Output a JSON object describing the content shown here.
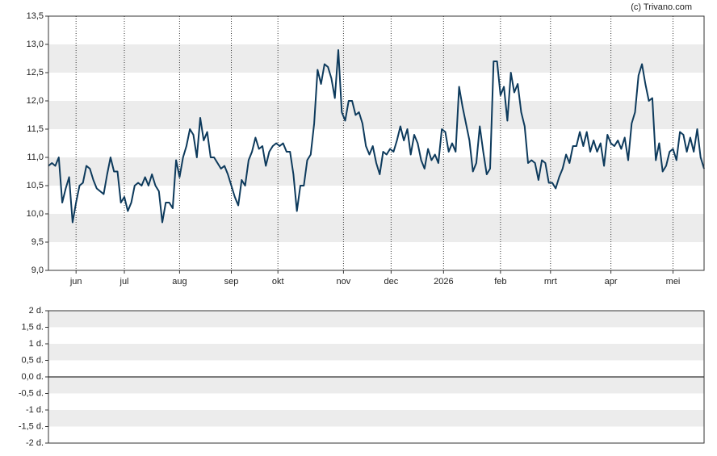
{
  "chart_data": [
    {
      "type": "line",
      "credit": "(c) Trivano.com",
      "series": [
        {
          "color": "#0d3a5c",
          "values": [
            10.85,
            10.9,
            10.85,
            11.0,
            10.2,
            10.45,
            10.65,
            9.85,
            10.2,
            10.5,
            10.55,
            10.85,
            10.8,
            10.6,
            10.45,
            10.4,
            10.35,
            10.7,
            11.0,
            10.75,
            10.75,
            10.2,
            10.3,
            10.05,
            10.2,
            10.5,
            10.55,
            10.5,
            10.65,
            10.5,
            10.7,
            10.5,
            10.4,
            9.85,
            10.2,
            10.2,
            10.1,
            10.95,
            10.65,
            11.0,
            11.2,
            11.5,
            11.4,
            11.0,
            11.7,
            11.3,
            11.45,
            11.0,
            11.0,
            10.9,
            10.8,
            10.85,
            10.7,
            10.5,
            10.3,
            10.15,
            10.6,
            10.5,
            10.95,
            11.1,
            11.35,
            11.15,
            11.2,
            10.85,
            11.1,
            11.2,
            11.25,
            11.2,
            11.25,
            11.1,
            11.1,
            10.7,
            10.05,
            10.5,
            10.5,
            10.95,
            11.05,
            11.6,
            12.55,
            12.3,
            12.65,
            12.6,
            12.4,
            12.05,
            12.9,
            11.8,
            11.65,
            12.0,
            12.0,
            11.75,
            11.8,
            11.6,
            11.2,
            11.05,
            11.2,
            10.9,
            10.7,
            11.1,
            11.05,
            11.15,
            11.1,
            11.3,
            11.55,
            11.3,
            11.5,
            11.05,
            11.4,
            11.25,
            10.95,
            10.8,
            11.15,
            10.95,
            11.05,
            10.9,
            11.5,
            11.45,
            11.1,
            11.25,
            11.1,
            12.25,
            11.9,
            11.6,
            11.3,
            10.75,
            10.9,
            11.55,
            11.1,
            10.7,
            10.8,
            12.7,
            12.7,
            12.1,
            12.25,
            11.65,
            12.5,
            12.15,
            12.3,
            11.8,
            11.55,
            10.9,
            10.95,
            10.9,
            10.6,
            10.95,
            10.9,
            10.55,
            10.55,
            10.45,
            10.65,
            10.8,
            11.05,
            10.9,
            11.2,
            11.2,
            11.45,
            11.2,
            11.45,
            11.1,
            11.3,
            11.1,
            11.25,
            10.85,
            11.4,
            11.25,
            11.2,
            11.3,
            11.15,
            11.35,
            10.95,
            11.6,
            11.8,
            12.45,
            12.65,
            12.3,
            12.0,
            12.05,
            10.95,
            11.25,
            10.75,
            10.85,
            11.1,
            11.15,
            10.95,
            11.45,
            11.4,
            11.1,
            11.35,
            11.1,
            11.5,
            11.0,
            10.8
          ]
        }
      ],
      "xlim": [
        0,
        190
      ],
      "xticks": [
        {
          "value": 8,
          "label": "jun"
        },
        {
          "value": 22,
          "label": "jul"
        },
        {
          "value": 38,
          "label": "aug"
        },
        {
          "value": 53,
          "label": "sep"
        },
        {
          "value": 66.5,
          "label": "okt"
        },
        {
          "value": 85.5,
          "label": "nov"
        },
        {
          "value": 99.3,
          "label": "dec"
        },
        {
          "value": 114.5,
          "label": "2026"
        },
        {
          "value": 131,
          "label": "feb"
        },
        {
          "value": 145.5,
          "label": "mrt"
        },
        {
          "value": 163,
          "label": "apr"
        },
        {
          "value": 181,
          "label": "mei"
        }
      ],
      "ylim": [
        9.0,
        13.5
      ],
      "yticks": [
        {
          "value": 9.0,
          "label": "9,0"
        },
        {
          "value": 9.5,
          "label": "9,5"
        },
        {
          "value": 10.0,
          "label": "10,0"
        },
        {
          "value": 10.5,
          "label": "10,5"
        },
        {
          "value": 11.0,
          "label": "11,0"
        },
        {
          "value": 11.5,
          "label": "11,5"
        },
        {
          "value": 12.0,
          "label": "12,0"
        },
        {
          "value": 12.5,
          "label": "12,5"
        },
        {
          "value": 13.0,
          "label": "13,0"
        },
        {
          "value": 13.5,
          "label": "13,5"
        }
      ]
    },
    {
      "type": "line",
      "ylim": [
        -2,
        2
      ],
      "yticks": [
        {
          "value": -2,
          "label": "-2 d."
        },
        {
          "value": -1.5,
          "label": "-1,5 d."
        },
        {
          "value": -1,
          "label": "-1 d."
        },
        {
          "value": -0.5,
          "label": "-0,5 d."
        },
        {
          "value": 0,
          "label": "0,0 d."
        },
        {
          "value": 0.5,
          "label": "0,5 d."
        },
        {
          "value": 1,
          "label": "1 d."
        },
        {
          "value": 1.5,
          "label": "1,5 d."
        },
        {
          "value": 2,
          "label": "2 d."
        }
      ],
      "zero_line": true
    }
  ]
}
